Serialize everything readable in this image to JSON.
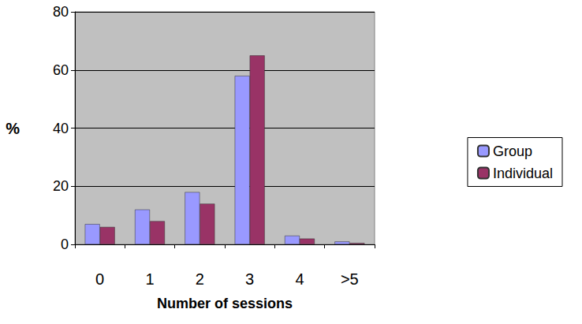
{
  "chart_data": {
    "type": "bar",
    "categories": [
      "0",
      "1",
      "2",
      "3",
      "4",
      ">5"
    ],
    "series": [
      {
        "name": "Group",
        "color": "#9999ff",
        "values": [
          7,
          12,
          18,
          58,
          3,
          1
        ]
      },
      {
        "name": "Individual",
        "color": "#993366",
        "values": [
          6,
          8,
          14,
          65,
          2,
          0.5
        ]
      }
    ],
    "x_label": "Number of sessions",
    "y_label": "%",
    "ylim": [
      0,
      80
    ],
    "yticks": [
      0,
      20,
      40,
      60,
      80
    ],
    "grid": true,
    "legend": "right"
  }
}
